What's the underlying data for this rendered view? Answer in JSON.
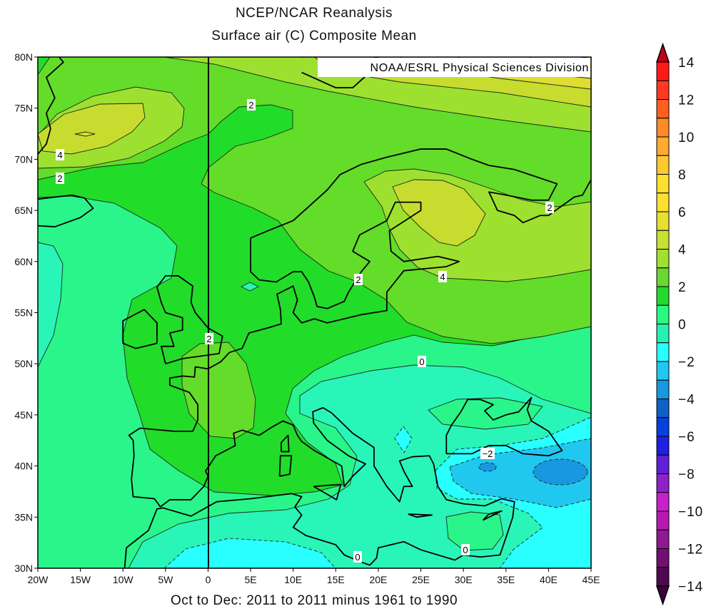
{
  "header": {
    "title": "NCEP/NCAR Reanalysis",
    "subtitle": "Surface air (C) Composite Mean",
    "credit": "NOAA/ESRL Physical Sciences Division"
  },
  "footer": {
    "period": "Oct to Dec: 2011 to 2011 minus 1961 to 1990"
  },
  "map": {
    "lat_range": [
      30,
      80
    ],
    "lon_range": [
      -20,
      45
    ],
    "lat_labels": [
      "80N",
      "75N",
      "70N",
      "65N",
      "60N",
      "55N",
      "50N",
      "45N",
      "40N",
      "35N",
      "30N"
    ],
    "lon_labels": [
      "20W",
      "15W",
      "10W",
      "5W",
      "0",
      "5E",
      "10E",
      "15E",
      "20E",
      "25E",
      "30E",
      "35E",
      "40E",
      "45E"
    ],
    "contour_labels": [
      "2",
      "4",
      "2",
      "2",
      "2",
      "2",
      "0",
      "-2",
      "0",
      "0",
      "4",
      "4"
    ],
    "fill_colors": {
      "m1": "#2af5b8",
      "m0": "#2af58a",
      "c1": "#22dc2a",
      "c2": "#64dc2a",
      "c3": "#9ee030",
      "c4": "#c8dc30",
      "c5": "#e0dc30",
      "c6": "#ffe030",
      "c7": "#ffc830",
      "cy": "#2affff",
      "b1": "#20c8f0",
      "b2": "#1898e0"
    }
  },
  "colorbar": {
    "labels": [
      "14",
      "12",
      "10",
      "8",
      "6",
      "4",
      "2",
      "0",
      "−2",
      "−4",
      "−6",
      "−8",
      "−10",
      "−12",
      "−14"
    ],
    "top_arrow_color": "#c00018",
    "bottom_arrow_color": "#400040",
    "colors": [
      "#ff1a1a",
      "#ff3a20",
      "#ff6020",
      "#ff8a28",
      "#ffaa30",
      "#ffc830",
      "#ffe030",
      "#ffe030",
      "#e6e030",
      "#c8e030",
      "#a0e030",
      "#6ad830",
      "#22d830",
      "#28fa80",
      "#28f0b0",
      "#28ffff",
      "#20c8f0",
      "#1898e0",
      "#1060c8",
      "#0840e0",
      "#2020e0",
      "#6020d8",
      "#9020c8",
      "#c820c8",
      "#b818b0",
      "#901890",
      "#701070",
      "#500850"
    ]
  }
}
